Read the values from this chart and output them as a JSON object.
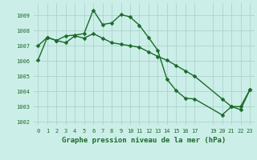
{
  "title": "Graphe pression niveau de la mer (hPa)",
  "background_color": "#cceee8",
  "grid_color": "#aad4cc",
  "line_color": "#1a6b2a",
  "xlim": [
    -0.5,
    23.5
  ],
  "ylim": [
    1001.8,
    1009.8
  ],
  "yticks": [
    1002,
    1003,
    1004,
    1005,
    1006,
    1007,
    1008,
    1009
  ],
  "xticks": [
    0,
    1,
    2,
    3,
    4,
    5,
    6,
    7,
    8,
    9,
    10,
    11,
    12,
    13,
    14,
    15,
    16,
    17,
    19,
    20,
    21,
    22,
    23
  ],
  "xtick_labels": [
    "0",
    "1",
    "2",
    "3",
    "4",
    "5",
    "6",
    "7",
    "8",
    "9",
    "10",
    "11",
    "12",
    "13",
    "14",
    "15",
    "16",
    "17",
    "19",
    "20",
    "21",
    "22",
    "23"
  ],
  "series1_x": [
    0,
    1,
    2,
    3,
    4,
    5,
    6,
    7,
    8,
    9,
    10,
    11,
    12,
    13,
    14,
    15,
    16,
    17,
    20,
    21,
    22,
    23
  ],
  "series1_y": [
    1007.0,
    1007.55,
    1007.35,
    1007.65,
    1007.7,
    1007.8,
    1009.35,
    1008.4,
    1008.5,
    1009.05,
    1008.9,
    1008.35,
    1007.55,
    1006.7,
    1004.8,
    1004.05,
    1003.55,
    1003.5,
    1002.45,
    1003.0,
    1003.0,
    1004.1
  ],
  "series2_x": [
    0,
    1,
    2,
    3,
    4,
    5,
    6,
    7,
    8,
    9,
    10,
    11,
    12,
    13,
    14,
    15,
    16,
    17,
    20,
    21,
    22,
    23
  ],
  "series2_y": [
    1006.05,
    1007.55,
    1007.35,
    1007.2,
    1007.65,
    1007.5,
    1007.8,
    1007.5,
    1007.2,
    1007.1,
    1007.0,
    1006.9,
    1006.6,
    1006.3,
    1006.05,
    1005.7,
    1005.35,
    1005.0,
    1003.5,
    1003.0,
    1002.8,
    1004.1
  ],
  "marker_size": 2.5,
  "line_width": 1.0,
  "tick_fontsize": 5.0,
  "xlabel_fontsize": 6.5
}
